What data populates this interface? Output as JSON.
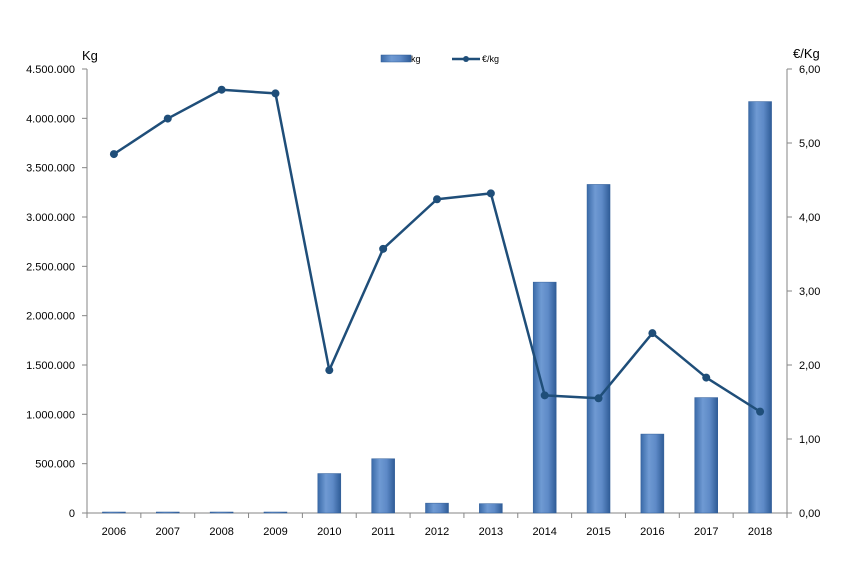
{
  "chart_data": {
    "type": "bar",
    "categories": [
      "2006",
      "2007",
      "2008",
      "2009",
      "2010",
      "2011",
      "2012",
      "2013",
      "2014",
      "2015",
      "2016",
      "2017",
      "2018"
    ],
    "series": [
      {
        "name": "kg",
        "type": "bar",
        "axis": "left",
        "color": "#4F81BD",
        "values": [
          0,
          0,
          0,
          0,
          400000,
          550000,
          100000,
          95000,
          2340000,
          3330000,
          800000,
          1170000,
          4170000
        ]
      },
      {
        "name": "€/kg",
        "type": "line",
        "axis": "right",
        "color": "#1F4E79",
        "values": [
          4.85,
          5.33,
          5.72,
          5.67,
          1.93,
          3.57,
          4.24,
          4.32,
          1.59,
          1.55,
          2.43,
          1.83,
          1.37
        ]
      }
    ],
    "ylabel": "Kg",
    "y2label": "€/Kg",
    "ylim": [
      0,
      4500000
    ],
    "y2lim": [
      0,
      6
    ],
    "yticks": [
      "0",
      "500.000",
      "1.000.000",
      "1.500.000",
      "2.000.000",
      "2.500.000",
      "3.000.000",
      "3.500.000",
      "4.000.000",
      "4.500.000"
    ],
    "y2ticks": [
      "0,00",
      "1,00",
      "2,00",
      "3,00",
      "4,00",
      "5,00",
      "6,00"
    ],
    "grid": false,
    "legend_position": "top-center"
  }
}
